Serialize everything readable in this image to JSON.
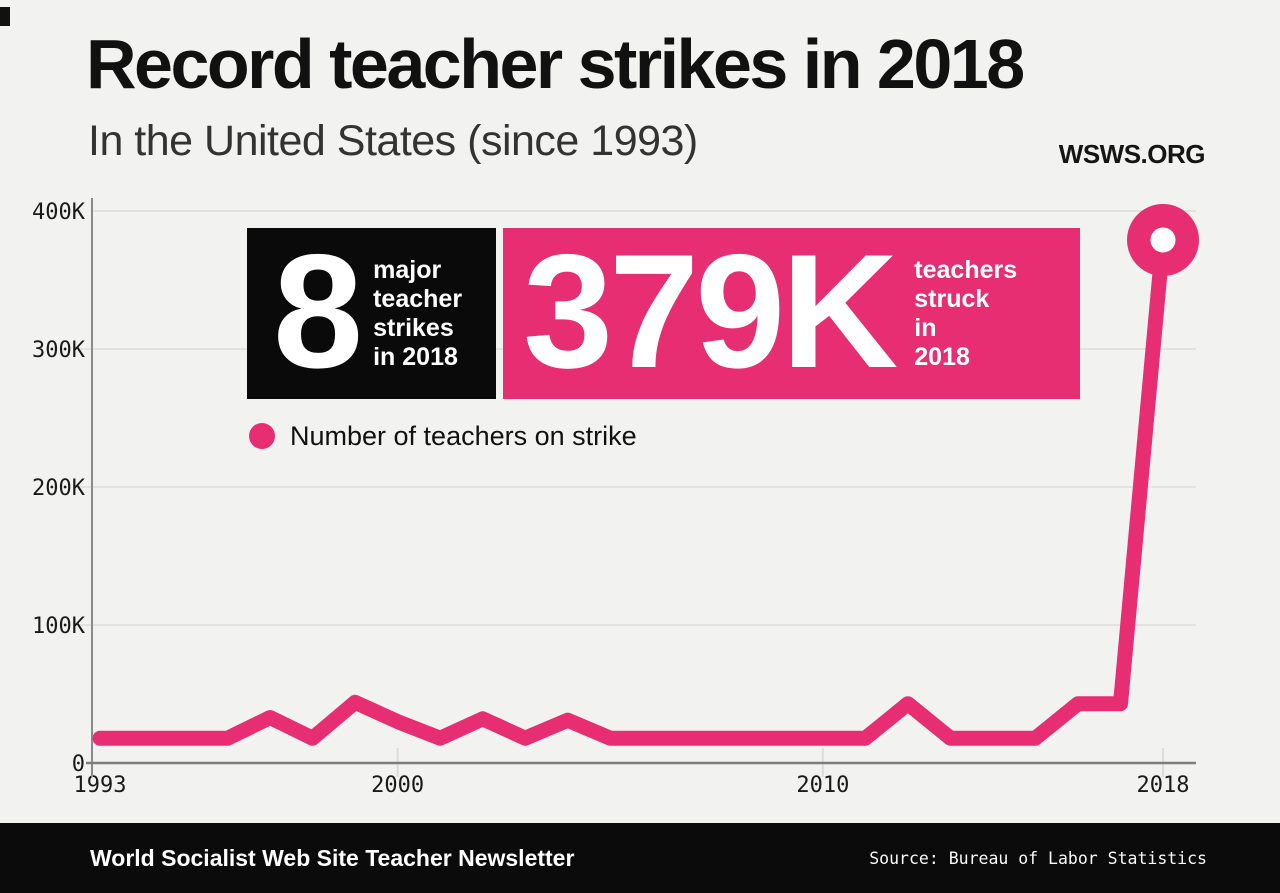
{
  "header": {
    "title": "Record teacher strikes in 2018",
    "subtitle": "In the United States (since 1993)",
    "site": "WSWS.ORG"
  },
  "callouts": {
    "strikes": {
      "number": "8",
      "lines": [
        "major",
        "teacher",
        "strikes",
        "in 2018"
      ],
      "bg": "#0a0a0a",
      "fg": "#ffffff"
    },
    "teachers": {
      "number": "379K",
      "lines": [
        "teachers",
        "struck",
        "in",
        "2018"
      ],
      "bg": "#e72e72",
      "fg": "#ffffff"
    }
  },
  "legend": {
    "label": "Number of teachers on strike",
    "marker_color": "#e72e72"
  },
  "footer": {
    "left": "World Socialist Web Site Teacher Newsletter",
    "right": "Source: Bureau of Labor Statistics"
  },
  "colors": {
    "background": "#f2f2f0",
    "pink": "#e72e72",
    "black_box": "#0a0a0a",
    "grid": "#dcdcda",
    "axis": "#8a8a8a",
    "tick_text": "#1a1a1a"
  },
  "chart_data": {
    "type": "line",
    "title": "Record teacher strikes in 2018",
    "subtitle": "In the United States (since 1993)",
    "xlabel": "",
    "ylabel": "",
    "units": "thousands of teachers on strike",
    "x": [
      1993,
      1994,
      1995,
      1996,
      1997,
      1998,
      1999,
      2000,
      2001,
      2002,
      2003,
      2004,
      2005,
      2006,
      2007,
      2008,
      2009,
      2010,
      2011,
      2012,
      2013,
      2014,
      2015,
      2016,
      2017,
      2018
    ],
    "series": [
      {
        "name": "Number of teachers on strike",
        "values": [
          18,
          18,
          18,
          18,
          33,
          18,
          44,
          30,
          18,
          32,
          18,
          31,
          18,
          18,
          18,
          18,
          18,
          18,
          18,
          43,
          18,
          18,
          18,
          43,
          43,
          379
        ]
      }
    ],
    "ylim": [
      0,
      400
    ],
    "yticks": [
      {
        "value": 0,
        "label": "0"
      },
      {
        "value": 100,
        "label": "100K"
      },
      {
        "value": 200,
        "label": "200K"
      },
      {
        "value": 300,
        "label": "300K"
      },
      {
        "value": 400,
        "label": "400K"
      }
    ],
    "xticks": [
      {
        "year": 1993,
        "label": "1993"
      },
      {
        "year": 2000,
        "label": "2000"
      },
      {
        "year": 2010,
        "label": "2010"
      },
      {
        "year": 2018,
        "label": "2018"
      }
    ],
    "grid": "horizontal",
    "legend_position": "inside-top-left",
    "line_color": "#e72e72",
    "line_width": 15,
    "end_marker": "ring"
  }
}
